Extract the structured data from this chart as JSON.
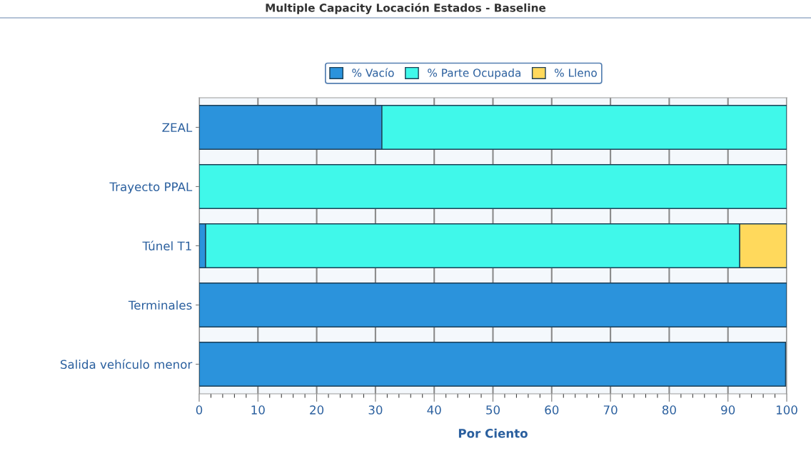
{
  "chart_data": {
    "type": "bar",
    "orientation": "horizontal",
    "stacked": true,
    "title": "Multiple Capacity Locación Estados - Baseline",
    "xlabel": "Por Ciento",
    "categories": [
      "ZEAL",
      "Trayecto PPAL",
      "Túnel T1",
      "Terminales",
      "Salida vehículo menor"
    ],
    "series": [
      {
        "name": "% Vacío",
        "color": "#2b93dc",
        "values": [
          31.1,
          null,
          1.1,
          100,
          99.8
        ]
      },
      {
        "name": "% Parte Ocupada",
        "color": "#40f8ea",
        "values": [
          68.9,
          100,
          90.9,
          null,
          null
        ]
      },
      {
        "name": "% Lleno",
        "color": "#ffd95c",
        "values": [
          null,
          null,
          8.0,
          null,
          null
        ]
      }
    ],
    "xlim": [
      0,
      100
    ],
    "xticks": [
      0,
      10,
      20,
      30,
      40,
      50,
      60,
      70,
      80,
      90,
      100
    ],
    "grid": "x",
    "legend": "top"
  }
}
